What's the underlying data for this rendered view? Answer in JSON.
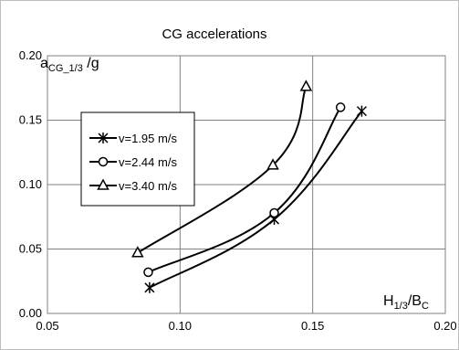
{
  "chart_data": {
    "type": "line",
    "title": "CG accelerations",
    "xlabel": {
      "main": "H",
      "sub1": "1/3",
      "mid": "/B",
      "sub2": "C"
    },
    "ylabel": {
      "main": "a",
      "sub": "CG_1/3",
      "tail": " /g"
    },
    "xlim": [
      0.05,
      0.2
    ],
    "ylim": [
      0.0,
      0.2
    ],
    "x_ticks": [
      "0.05",
      "0.10",
      "0.15",
      "0.20"
    ],
    "y_ticks": [
      "0.00",
      "0.05",
      "0.10",
      "0.15",
      "0.20"
    ],
    "grid": true,
    "legend_position": "left",
    "series": [
      {
        "name": "v=1.95 m/s",
        "marker": "asterisk",
        "x": [
          0.0885,
          0.1355,
          0.1685
        ],
        "y": [
          0.02,
          0.073,
          0.157
        ]
      },
      {
        "name": "v=2.44 m/s",
        "marker": "circle",
        "x": [
          0.088,
          0.1355,
          0.1605
        ],
        "y": [
          0.032,
          0.078,
          0.16
        ]
      },
      {
        "name": "v=3.40 m/s",
        "marker": "triangle",
        "x": [
          0.084,
          0.135,
          0.1475
        ],
        "y": [
          0.047,
          0.115,
          0.176
        ]
      }
    ],
    "line_color": "#000000",
    "grid_color": "#808080"
  }
}
